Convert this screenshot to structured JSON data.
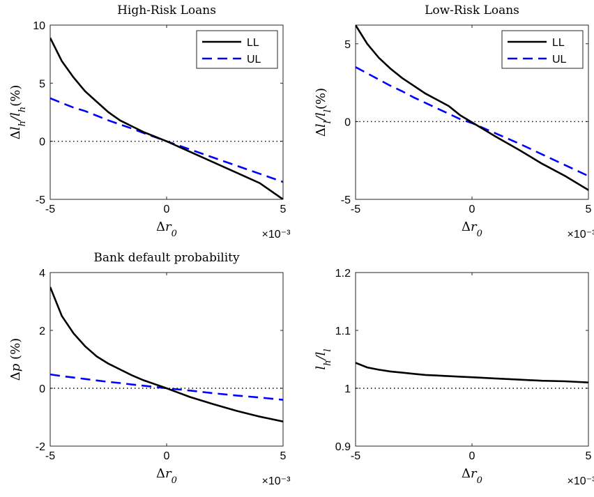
{
  "chart_data": [
    {
      "type": "line",
      "title": "High-Risk Loans",
      "xlabel": "Δr₀",
      "ylabel": "Δl_h / l_h (%)",
      "x_multiplier": "×10⁻³",
      "xlim": [
        -5,
        5
      ],
      "ylim": [
        -5,
        10
      ],
      "xticks": [
        "-5",
        "0",
        "5"
      ],
      "yticks": [
        "-5",
        "0",
        "5",
        "10"
      ],
      "legend": "top-right",
      "reference_line": 0,
      "x": [
        -5,
        -4.5,
        -4,
        -3.5,
        -3,
        -2.5,
        -2,
        -1.5,
        -1,
        -0.5,
        0,
        1,
        2,
        3,
        4,
        5
      ],
      "series": [
        {
          "name": "LL",
          "style": "solid",
          "color": "#000000",
          "values": [
            8.9,
            6.9,
            5.5,
            4.3,
            3.4,
            2.5,
            1.8,
            1.3,
            0.8,
            0.4,
            0.0,
            -0.9,
            -1.8,
            -2.7,
            -3.6,
            -5.0
          ]
        },
        {
          "name": "UL",
          "style": "dashed",
          "color": "#0000ff",
          "values": [
            3.7,
            3.3,
            2.9,
            2.6,
            2.2,
            1.8,
            1.45,
            1.1,
            0.72,
            0.36,
            0.0,
            -0.7,
            -1.4,
            -2.1,
            -2.8,
            -3.5
          ]
        }
      ]
    },
    {
      "type": "line",
      "title": "Low-Risk Loans",
      "xlabel": "Δr₀",
      "ylabel": "Δl_l / l_l (%)",
      "x_multiplier": "×10⁻³",
      "xlim": [
        -5,
        5
      ],
      "ylim": [
        -5,
        6.2
      ],
      "xticks": [
        "-5",
        "0",
        "5"
      ],
      "yticks": [
        "-5",
        "0",
        "5"
      ],
      "legend": "top-right",
      "reference_line": 0,
      "x": [
        -5,
        -4.5,
        -4,
        -3.5,
        -3,
        -2.5,
        -2,
        -1.5,
        -1,
        -0.5,
        0,
        1,
        2,
        3,
        4,
        5
      ],
      "series": [
        {
          "name": "LL",
          "style": "solid",
          "color": "#000000",
          "values": [
            6.2,
            5.0,
            4.1,
            3.4,
            2.8,
            2.3,
            1.8,
            1.4,
            1.0,
            0.4,
            -0.05,
            -0.95,
            -1.8,
            -2.7,
            -3.5,
            -4.4
          ]
        },
        {
          "name": "UL",
          "style": "dashed",
          "color": "#0000ff",
          "values": [
            3.5,
            3.1,
            2.7,
            2.3,
            1.95,
            1.55,
            1.2,
            0.85,
            0.5,
            0.15,
            -0.1,
            -0.75,
            -1.4,
            -2.1,
            -2.8,
            -3.5
          ]
        }
      ]
    },
    {
      "type": "line",
      "title": "Bank default probability",
      "xlabel": "Δr₀",
      "ylabel": "Δp (%)",
      "x_multiplier": "×10⁻³",
      "xlim": [
        -5,
        5
      ],
      "ylim": [
        -2,
        4
      ],
      "xticks": [
        "-5",
        "0",
        "5"
      ],
      "yticks": [
        "-2",
        "0",
        "2",
        "4"
      ],
      "reference_line": 0,
      "x": [
        -5,
        -4.5,
        -4,
        -3.5,
        -3,
        -2.5,
        -2,
        -1.5,
        -1,
        -0.5,
        0,
        1,
        2,
        3,
        4,
        5
      ],
      "series": [
        {
          "name": "LL",
          "style": "solid",
          "color": "#000000",
          "values": [
            3.5,
            2.5,
            1.9,
            1.45,
            1.1,
            0.85,
            0.65,
            0.45,
            0.28,
            0.14,
            0.0,
            -0.3,
            -0.55,
            -0.78,
            -0.98,
            -1.15
          ]
        },
        {
          "name": "UL",
          "style": "dashed",
          "color": "#0000ff",
          "values": [
            0.48,
            0.42,
            0.37,
            0.32,
            0.27,
            0.22,
            0.18,
            0.13,
            0.09,
            0.045,
            0.0,
            -0.08,
            -0.17,
            -0.25,
            -0.32,
            -0.4
          ]
        }
      ]
    },
    {
      "type": "line",
      "title": "",
      "xlabel": "Δr₀",
      "ylabel": "l_h / l_l",
      "x_multiplier": "×10⁻³",
      "xlim": [
        -5,
        5
      ],
      "ylim": [
        0.9,
        1.2
      ],
      "xticks": [
        "-5",
        "0",
        "5"
      ],
      "yticks": [
        "0.9",
        "1",
        "1.1",
        "1.2"
      ],
      "reference_line": 1,
      "x": [
        -5,
        -4.5,
        -4,
        -3.5,
        -3,
        -2.5,
        -2,
        -1.5,
        -1,
        -0.5,
        0,
        1,
        2,
        3,
        4,
        5
      ],
      "series": [
        {
          "name": "LL",
          "style": "solid",
          "color": "#000000",
          "values": [
            1.044,
            1.036,
            1.032,
            1.029,
            1.027,
            1.025,
            1.023,
            1.022,
            1.021,
            1.02,
            1.019,
            1.017,
            1.015,
            1.013,
            1.012,
            1.01
          ]
        }
      ]
    }
  ]
}
